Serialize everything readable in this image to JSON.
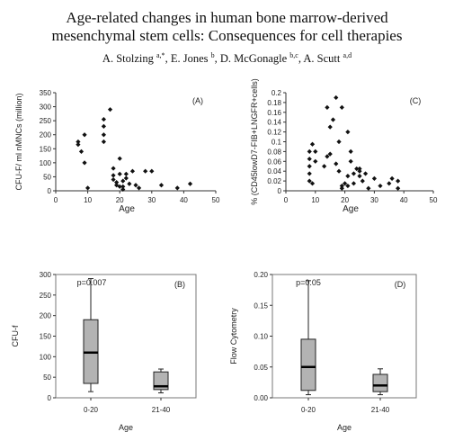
{
  "header": {
    "title_line1": "Age-related changes in human bone marrow-derived",
    "title_line2": "mesenchymal stem cells: Consequences for cell therapies",
    "authors": [
      {
        "name": "A. Stolzing",
        "aff": "a,*",
        "sep": ", "
      },
      {
        "name": "E. Jones",
        "aff": "b",
        "sep": ", "
      },
      {
        "name": "D. McGonagle",
        "aff": "b,c",
        "sep": ", "
      },
      {
        "name": "A. Scutt",
        "aff": "a,d",
        "sep": ""
      }
    ]
  },
  "chart_data": [
    {
      "panel": "(A)",
      "type": "scatter",
      "xlabel": "Age",
      "ylabel": "CFU-F/ ml nMNCs (million)",
      "xlim": [
        0,
        50
      ],
      "ylim": [
        0,
        350
      ],
      "xticks": [
        0,
        10,
        20,
        30,
        40,
        50
      ],
      "yticks": [
        0,
        50,
        100,
        150,
        200,
        250,
        300,
        350
      ],
      "points": [
        [
          7,
          175
        ],
        [
          7,
          165
        ],
        [
          8,
          140
        ],
        [
          9,
          100
        ],
        [
          9,
          200
        ],
        [
          10,
          10
        ],
        [
          15,
          255
        ],
        [
          15,
          230
        ],
        [
          15,
          175
        ],
        [
          15,
          200
        ],
        [
          17,
          290
        ],
        [
          18,
          80
        ],
        [
          18,
          55
        ],
        [
          18,
          40
        ],
        [
          19,
          30
        ],
        [
          19,
          20
        ],
        [
          20,
          15
        ],
        [
          20,
          115
        ],
        [
          20,
          60
        ],
        [
          21,
          35
        ],
        [
          21,
          15
        ],
        [
          21,
          5
        ],
        [
          22,
          45
        ],
        [
          22,
          60
        ],
        [
          23,
          25
        ],
        [
          24,
          70
        ],
        [
          25,
          20
        ],
        [
          26,
          10
        ],
        [
          28,
          70
        ],
        [
          30,
          70
        ],
        [
          33,
          20
        ],
        [
          38,
          10
        ],
        [
          42,
          25
        ]
      ]
    },
    {
      "panel": "(C)",
      "type": "scatter",
      "xlabel": "Age",
      "ylabel": "% (CD45lowD7-FIB+LNGFR+cells)",
      "xlim": [
        0,
        50
      ],
      "ylim": [
        0,
        0.2
      ],
      "xticks": [
        0,
        10,
        20,
        30,
        40,
        50
      ],
      "yticks": [
        0,
        0.02,
        0.04,
        0.06,
        0.08,
        0.1,
        0.12,
        0.14,
        0.16,
        0.18,
        0.2
      ],
      "points": [
        [
          8,
          0.02
        ],
        [
          8,
          0.035
        ],
        [
          8,
          0.05
        ],
        [
          8,
          0.065
        ],
        [
          8,
          0.08
        ],
        [
          9,
          0.095
        ],
        [
          9,
          0.015
        ],
        [
          10,
          0.08
        ],
        [
          10,
          0.06
        ],
        [
          13,
          0.05
        ],
        [
          14,
          0.17
        ],
        [
          14,
          0.07
        ],
        [
          15,
          0.075
        ],
        [
          15,
          0.13
        ],
        [
          16,
          0.145
        ],
        [
          17,
          0.19
        ],
        [
          17,
          0.055
        ],
        [
          18,
          0.1
        ],
        [
          18,
          0.04
        ],
        [
          19,
          0.17
        ],
        [
          19,
          0.01
        ],
        [
          19,
          0.005
        ],
        [
          20,
          0.015
        ],
        [
          21,
          0.03
        ],
        [
          21,
          0.12
        ],
        [
          21,
          0.01
        ],
        [
          22,
          0.06
        ],
        [
          22,
          0.08
        ],
        [
          23,
          0.035
        ],
        [
          23,
          0.015
        ],
        [
          24,
          0.045
        ],
        [
          25,
          0.045
        ],
        [
          25,
          0.04
        ],
        [
          25,
          0.03
        ],
        [
          26,
          0.02
        ],
        [
          27,
          0.035
        ],
        [
          28,
          0.005
        ],
        [
          30,
          0.025
        ],
        [
          32,
          0.01
        ],
        [
          35,
          0.015
        ],
        [
          36,
          0.025
        ],
        [
          38,
          0.02
        ],
        [
          38,
          0.005
        ]
      ]
    },
    {
      "panel": "(B)",
      "type": "box",
      "xlabel": "Age",
      "ylabel": "CFU-f",
      "annotation": "p=0.007",
      "ylim": [
        0,
        300
      ],
      "yticks": [
        0,
        50,
        100,
        150,
        200,
        250,
        300
      ],
      "categories": [
        "0-20",
        "21-40"
      ],
      "boxes": [
        {
          "whisker_low": 15,
          "q1": 35,
          "median": 110,
          "q3": 190,
          "whisker_high": 290
        },
        {
          "whisker_low": 12,
          "q1": 20,
          "median": 28,
          "q3": 63,
          "whisker_high": 70
        }
      ]
    },
    {
      "panel": "(D)",
      "type": "box",
      "xlabel": "Age",
      "ylabel": "Flow Cytometry",
      "annotation": "p=0.05",
      "ylim": [
        0,
        0.2
      ],
      "yticks": [
        "0.00",
        "0.05",
        "0.10",
        "0.15",
        "0.20"
      ],
      "categories": [
        "0-20",
        "21-40"
      ],
      "boxes": [
        {
          "whisker_low": 0.005,
          "q1": 0.012,
          "median": 0.05,
          "q3": 0.095,
          "whisker_high": 0.19
        },
        {
          "whisker_low": 0.005,
          "q1": 0.01,
          "median": 0.02,
          "q3": 0.038,
          "whisker_high": 0.047
        }
      ]
    }
  ]
}
